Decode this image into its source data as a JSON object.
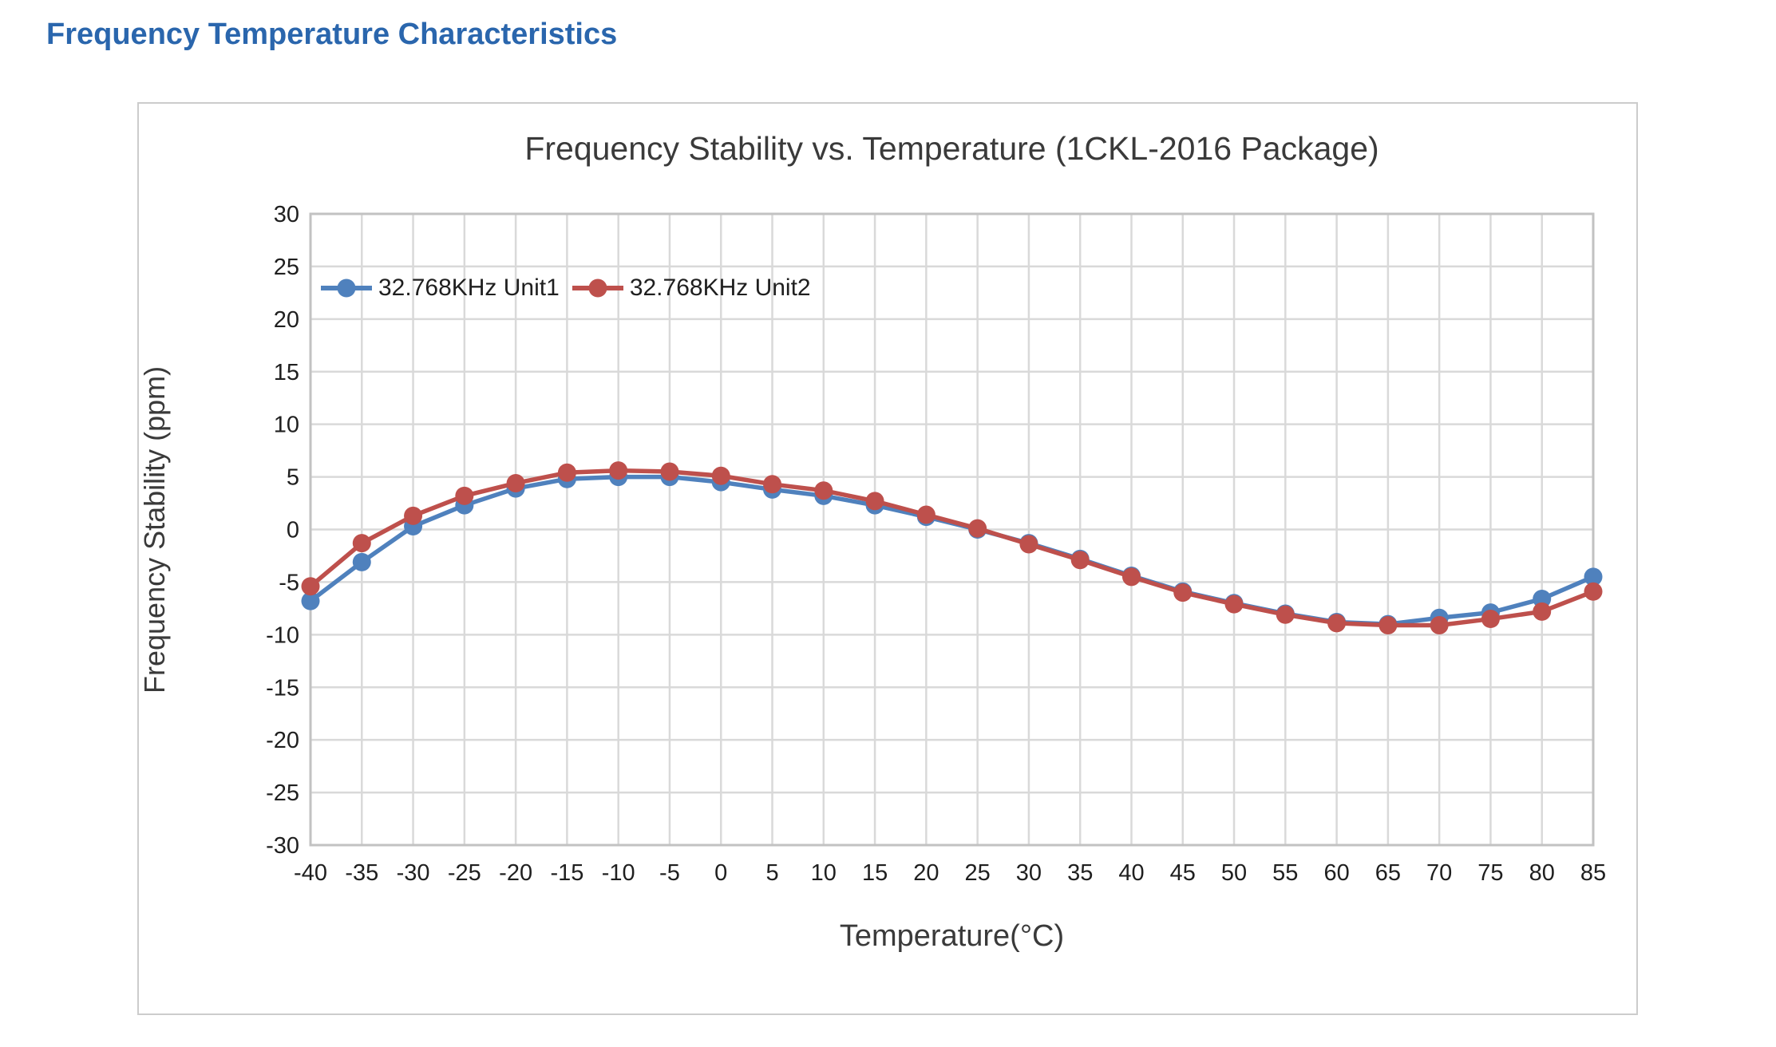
{
  "page": {
    "heading": "Frequency Temperature Characteristics"
  },
  "colors": {
    "heading": "#2a66ad",
    "gridline": "#d9d9d9",
    "plot_border": "#c2c2c2",
    "panel_border": "#cccccc",
    "title_text": "#3a3a3a",
    "tick_text": "#1f1f1f",
    "unit1": "#4f81bd",
    "unit2": "#be504c"
  },
  "chart_data": {
    "type": "line",
    "title": "Frequency Stability vs. Temperature (1CKL-2016 Package)",
    "xlabel": "Temperature(°C)",
    "ylabel": "Frequency Stability (ppm)",
    "x": [
      -40,
      -35,
      -30,
      -25,
      -20,
      -15,
      -10,
      -5,
      0,
      5,
      10,
      15,
      20,
      25,
      30,
      35,
      40,
      45,
      50,
      55,
      60,
      65,
      70,
      75,
      80,
      85
    ],
    "series": [
      {
        "name": "32.768KHz Unit1",
        "color": "#4f81bd",
        "values": [
          -6.8,
          -3.1,
          0.3,
          2.3,
          3.9,
          4.8,
          5.0,
          5.0,
          4.5,
          3.8,
          3.2,
          2.3,
          1.2,
          0.0,
          -1.3,
          -2.8,
          -4.4,
          -5.9,
          -7.0,
          -8.0,
          -8.8,
          -9.0,
          -8.4,
          -7.9,
          -6.6,
          -4.5
        ]
      },
      {
        "name": "32.768KHz Unit2",
        "color": "#be504c",
        "values": [
          -5.4,
          -1.3,
          1.3,
          3.2,
          4.4,
          5.4,
          5.6,
          5.5,
          5.1,
          4.3,
          3.7,
          2.7,
          1.4,
          0.1,
          -1.4,
          -2.9,
          -4.5,
          -6.0,
          -7.1,
          -8.1,
          -8.9,
          -9.1,
          -9.1,
          -8.5,
          -7.8,
          -5.9
        ]
      }
    ],
    "ylim": [
      -30,
      30
    ],
    "ytick_step": 5,
    "grid": true,
    "legend_position": "top-left-inside"
  }
}
